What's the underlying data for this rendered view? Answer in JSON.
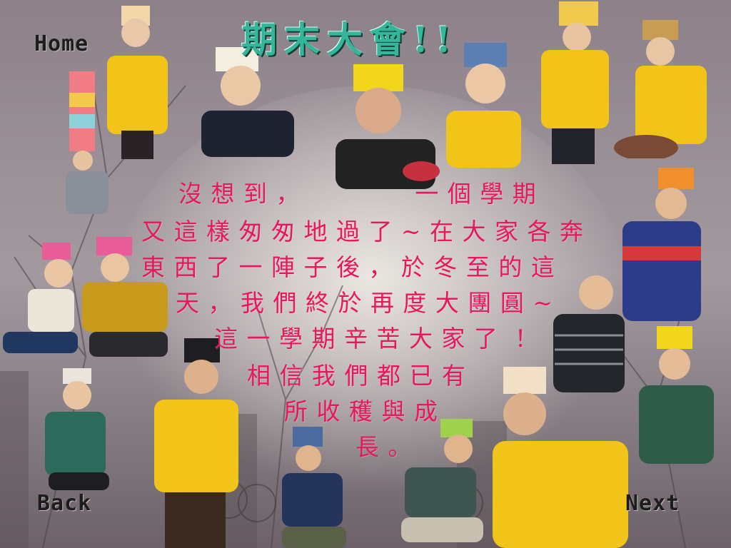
{
  "title": "期末大會!!",
  "nav": {
    "home": "Home",
    "back": "Back",
    "next": "Next"
  },
  "message_lines": [
    "沒 想 到 ，              一 個 學 期",
    "又 這 樣 匆 匆 地 過 了 ~ 在 大 家 各 奔",
    "東 西 了 一 陣 子 後 ， 於 冬 至 的 這",
    "天 ， 我 們 終 於 再 度 大 團 圓 ~",
    "這 一 學 期 辛 苦 大 家 了  ！",
    "相 信 我 們 都 已 有",
    "所 收 穫 與 成",
    "長 。"
  ],
  "colors": {
    "title": "#35b59a",
    "message": "#e8185f",
    "shirt_yellow": "#f2c318",
    "background": "#9a8e94"
  }
}
